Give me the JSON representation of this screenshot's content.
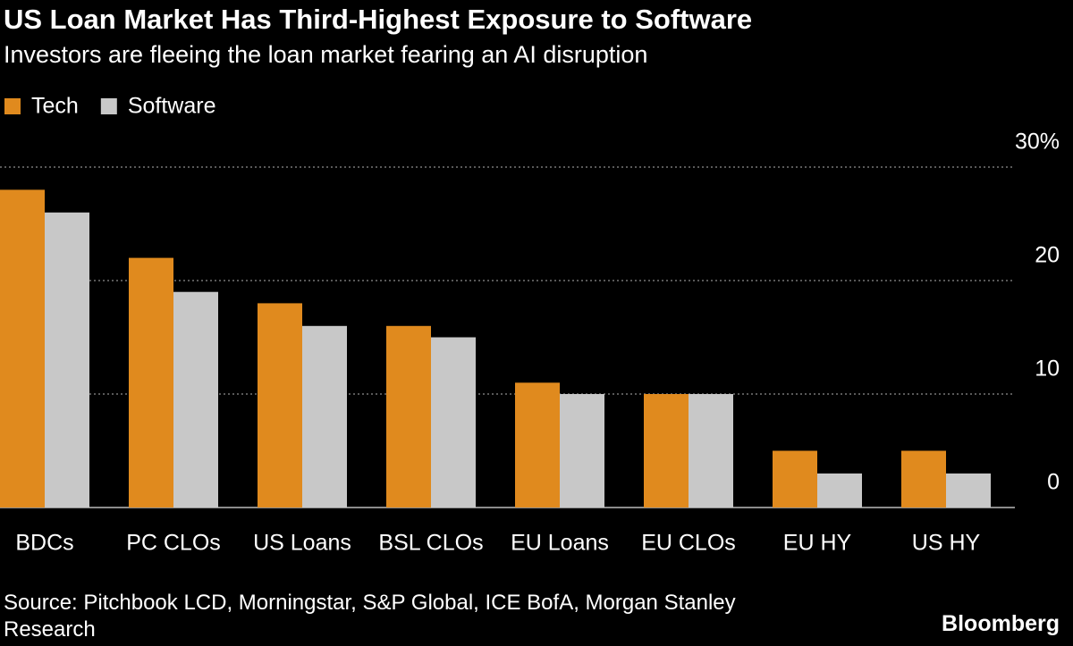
{
  "chart_data": {
    "type": "bar",
    "title": "US Loan Market Has Third-Highest Exposure to Software",
    "subtitle": "Investors are fleeing the loan market fearing an AI disruption",
    "categories": [
      "BDCs",
      "PC CLOs",
      "US Loans",
      "BSL CLOs",
      "EU Loans",
      "EU CLOs",
      "EU HY",
      "US HY"
    ],
    "series": [
      {
        "name": "Tech",
        "color": "#e08a1e",
        "values": [
          28,
          22,
          18,
          16,
          11,
          10,
          5,
          5
        ]
      },
      {
        "name": "Software",
        "color": "#c8c8c8",
        "values": [
          26,
          19,
          16,
          15,
          10,
          10,
          3,
          3
        ]
      }
    ],
    "ylim": [
      0,
      30
    ],
    "yticks": [
      0,
      10,
      20,
      {
        "value": 30,
        "label": "30%"
      }
    ],
    "grid": true,
    "legend": "top-left",
    "source": "Source: Pitchbook LCD, Morningstar, S&P Global, ICE BofA, Morgan Stanley Research",
    "brand": "Bloomberg"
  }
}
